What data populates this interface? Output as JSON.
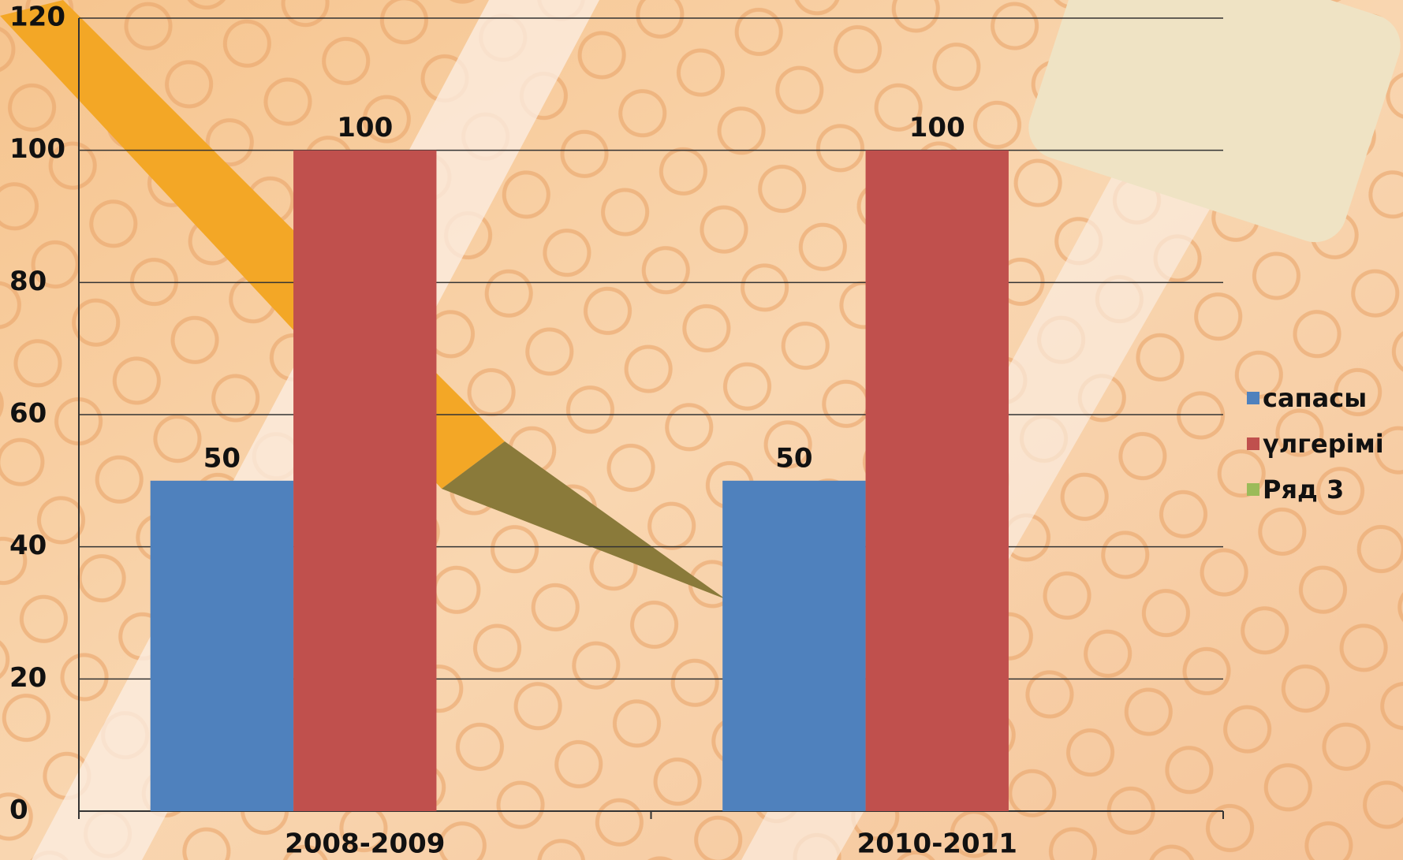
{
  "chart_data": {
    "type": "bar",
    "categories": [
      "2008-2009",
      "2010-2011"
    ],
    "series": [
      {
        "name": "сапасы",
        "color": "#4f81bd",
        "values": [
          50,
          50
        ]
      },
      {
        "name": "үлгерімі",
        "color": "#c0504d",
        "values": [
          100,
          100
        ]
      },
      {
        "name": "Ряд 3",
        "color": "#9bbb59",
        "values": [
          null,
          null
        ]
      }
    ],
    "ylim": [
      0,
      120
    ],
    "yticks": [
      0,
      20,
      40,
      60,
      80,
      100,
      120
    ],
    "grid": true,
    "legend": "right",
    "data_labels": true
  }
}
